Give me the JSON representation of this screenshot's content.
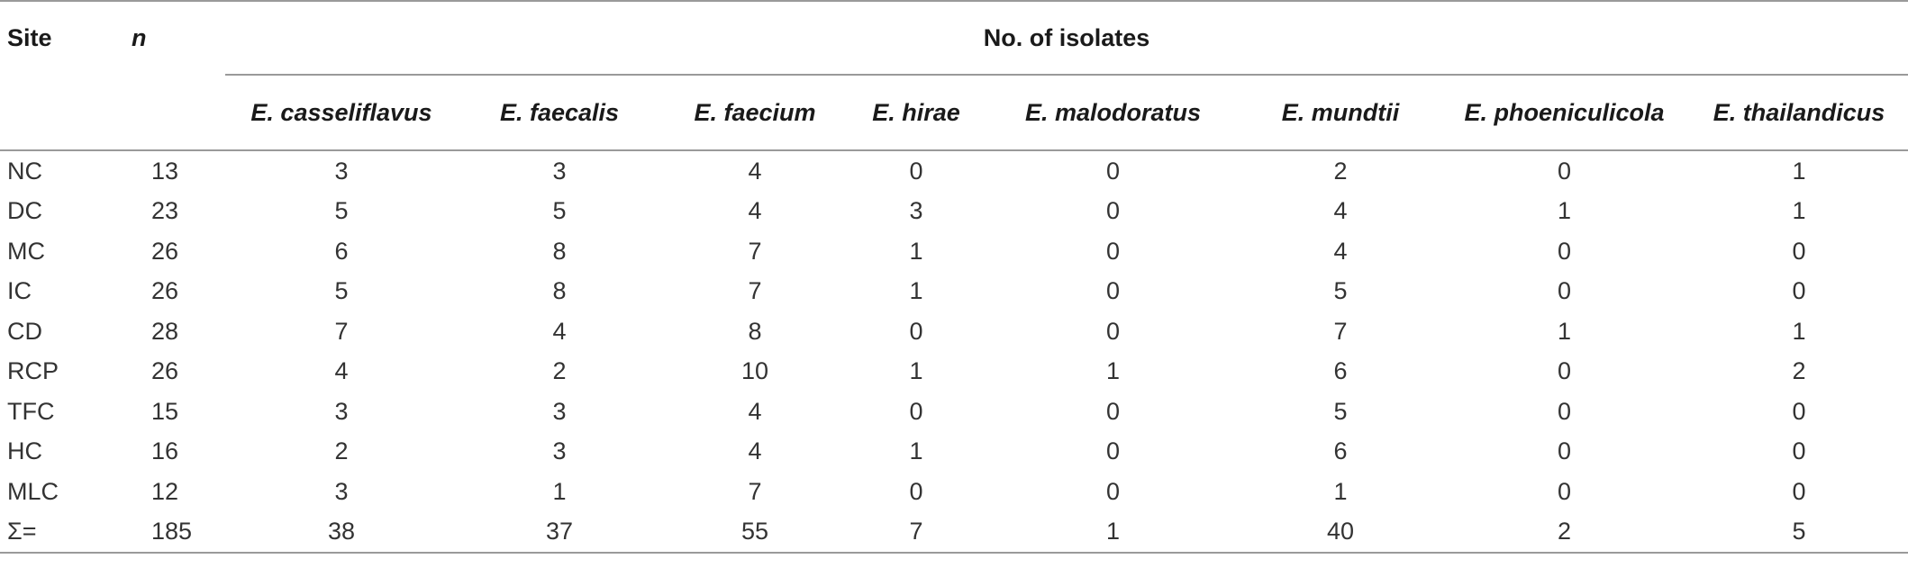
{
  "header": {
    "site": "Site",
    "n": "n",
    "group": "No. of isolates",
    "species": [
      "E. casseliflavus",
      "E. faecalis",
      "E. faecium",
      "E. hirae",
      "E. malodoratus",
      "E. mundtii",
      "E. phoeniculicola",
      "E. thailandicus"
    ]
  },
  "rows": [
    {
      "site": "NC",
      "n": "13",
      "values": [
        "3",
        "3",
        "4",
        "0",
        "0",
        "2",
        "0",
        "1"
      ]
    },
    {
      "site": "DC",
      "n": "23",
      "values": [
        "5",
        "5",
        "4",
        "3",
        "0",
        "4",
        "1",
        "1"
      ]
    },
    {
      "site": "MC",
      "n": "26",
      "values": [
        "6",
        "8",
        "7",
        "1",
        "0",
        "4",
        "0",
        "0"
      ]
    },
    {
      "site": "IC",
      "n": "26",
      "values": [
        "5",
        "8",
        "7",
        "1",
        "0",
        "5",
        "0",
        "0"
      ]
    },
    {
      "site": "CD",
      "n": "28",
      "values": [
        "7",
        "4",
        "8",
        "0",
        "0",
        "7",
        "1",
        "1"
      ]
    },
    {
      "site": "RCP",
      "n": "26",
      "values": [
        "4",
        "2",
        "10",
        "1",
        "1",
        "6",
        "0",
        "2"
      ]
    },
    {
      "site": "TFC",
      "n": "15",
      "values": [
        "3",
        "3",
        "4",
        "0",
        "0",
        "5",
        "0",
        "0"
      ]
    },
    {
      "site": "HC",
      "n": "16",
      "values": [
        "2",
        "3",
        "4",
        "1",
        "0",
        "6",
        "0",
        "0"
      ]
    },
    {
      "site": "MLC",
      "n": "12",
      "values": [
        "3",
        "1",
        "7",
        "0",
        "0",
        "1",
        "0",
        "0"
      ]
    },
    {
      "site": "Σ=",
      "n": "185",
      "values": [
        "38",
        "37",
        "55",
        "7",
        "1",
        "40",
        "2",
        "5"
      ]
    }
  ]
}
